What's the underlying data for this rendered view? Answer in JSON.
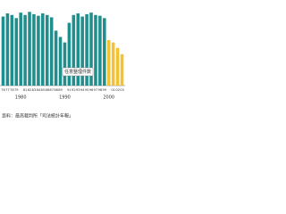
{
  "chart_data": {
    "type": "bar",
    "categories": [
      "76",
      "77",
      "78",
      "79",
      "1980",
      "81",
      "82",
      "83",
      "84",
      "85",
      "86",
      "87",
      "88",
      "89",
      "1990",
      "91",
      "92",
      "93",
      "94",
      "95",
      "96",
      "97",
      "98",
      "99",
      "2000",
      "01",
      "02",
      "03"
    ],
    "series": [
      {
        "color": "#1f8e8c",
        "values": [
          88,
          92,
          90,
          86,
          93,
          90,
          94,
          91,
          89,
          92,
          90,
          87,
          70,
          62,
          55,
          80,
          90,
          92,
          88,
          91,
          93,
          90,
          89,
          86,
          null,
          null,
          null,
          null
        ]
      },
      {
        "color": "#f2c233",
        "values": [
          null,
          null,
          null,
          null,
          null,
          null,
          null,
          null,
          null,
          null,
          null,
          null,
          null,
          null,
          null,
          null,
          null,
          null,
          null,
          null,
          null,
          null,
          null,
          null,
          58,
          55,
          48,
          40
        ]
      }
    ],
    "ylim": [
      0,
      100
    ],
    "annotation": "任意整理件数",
    "note": "資料：最高裁判所「司法統計年報」"
  }
}
